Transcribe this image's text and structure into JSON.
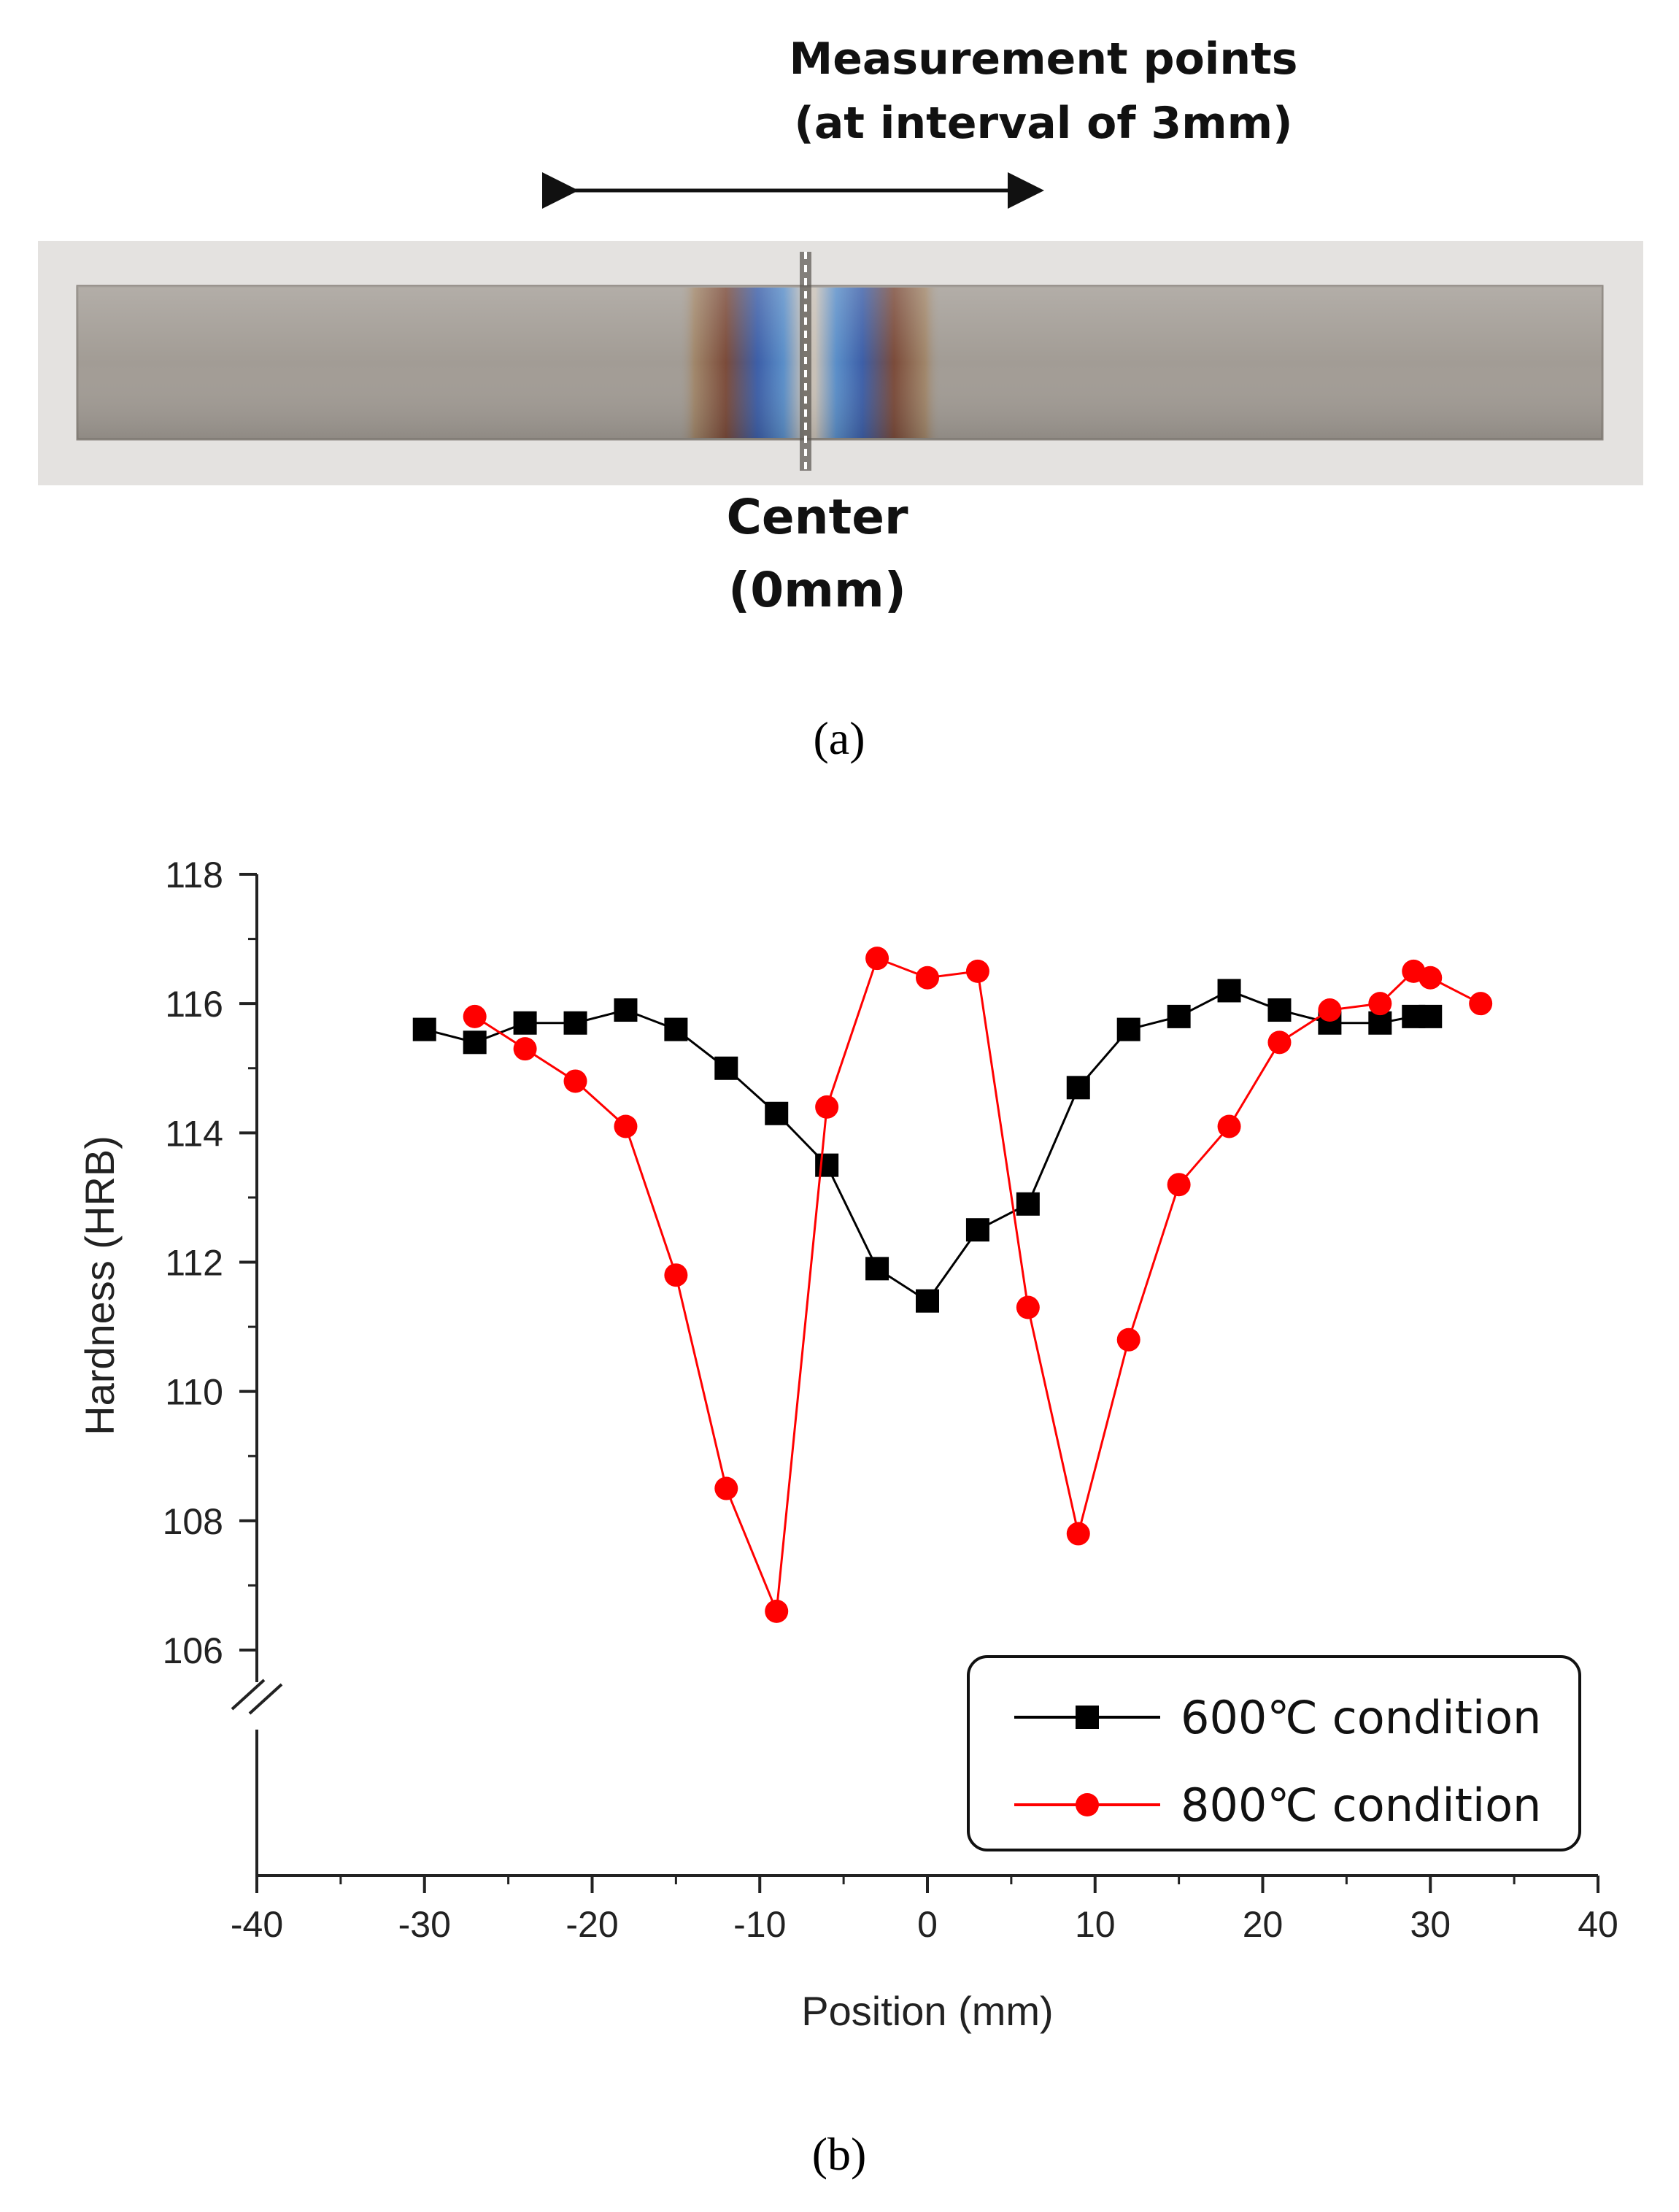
{
  "photo": {
    "heading_line1": "Measurement points",
    "heading_line2": "(at interval of 3mm)",
    "center_line1": "Center",
    "center_line2": "(0mm)",
    "label": "(a)"
  },
  "chart_label": "(b)",
  "colors": {
    "series_600": "#000000",
    "series_800": "#ff0000",
    "axis": "#222222",
    "strip": "#a29c95",
    "backdrop": "#e4e2e0"
  },
  "chart_data": {
    "type": "line",
    "title": "",
    "xlabel": "Position (mm)",
    "ylabel": "Hardness (HRB)",
    "xlim": [
      -40,
      40
    ],
    "ylim": [
      105,
      118
    ],
    "xticks": [
      -40,
      -30,
      -20,
      -10,
      0,
      10,
      20,
      30,
      40
    ],
    "yticks": [
      106,
      108,
      110,
      112,
      114,
      116,
      118
    ],
    "legend_position": "bottom-right",
    "series": [
      {
        "name": "600℃ condition",
        "marker": "square",
        "color": "#000000",
        "x": [
          -30,
          -27,
          -24,
          -21,
          -18,
          -15,
          -12,
          -9,
          -6,
          -3,
          0,
          3,
          6,
          9,
          12,
          15,
          18,
          21,
          24,
          27,
          29,
          30
        ],
        "y": [
          115.6,
          115.4,
          115.7,
          115.7,
          115.9,
          115.6,
          115.0,
          114.3,
          113.5,
          111.9,
          111.4,
          112.5,
          112.9,
          114.7,
          115.6,
          115.8,
          116.2,
          115.9,
          115.7,
          115.7,
          115.8,
          115.8
        ]
      },
      {
        "name": "800℃ condition",
        "marker": "circle",
        "color": "#ff0000",
        "x": [
          -27,
          -24,
          -21,
          -18,
          -15,
          -12,
          -9,
          -6,
          -3,
          0,
          3,
          6,
          9,
          12,
          15,
          18,
          21,
          24,
          27,
          29,
          30,
          33
        ],
        "y": [
          115.8,
          115.3,
          114.8,
          114.1,
          111.8,
          108.5,
          106.6,
          114.4,
          116.7,
          116.4,
          116.5,
          111.3,
          107.8,
          110.8,
          113.2,
          114.1,
          115.4,
          115.9,
          116.0,
          116.5,
          116.4,
          116.0
        ]
      }
    ]
  }
}
